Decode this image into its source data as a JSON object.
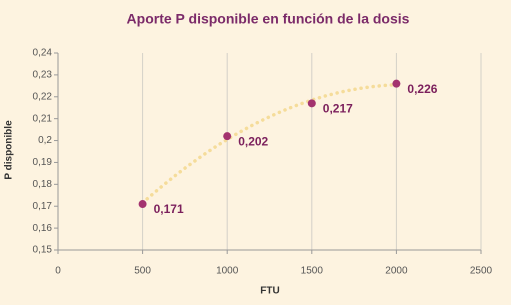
{
  "chart_data": {
    "type": "scatter",
    "title": "Aporte P disponible en función de la dosis",
    "x_label": "FTU",
    "y_label": "P disponible",
    "x": [
      500,
      1000,
      1500,
      2000
    ],
    "values": [
      0.171,
      0.202,
      0.217,
      0.226
    ],
    "value_labels": [
      "0,171",
      "0,202",
      "0,217",
      "0,226"
    ],
    "color": "#a3336f",
    "trend_color": "#f5dc9a",
    "xlim": [
      0,
      2500
    ],
    "xticks": [
      0,
      500,
      1000,
      1500,
      2000,
      2500
    ],
    "ylim": [
      0.15,
      0.24
    ],
    "yticks": [
      {
        "value": 0.15,
        "label": "0,15"
      },
      {
        "value": 0.16,
        "label": "0,16"
      },
      {
        "value": 0.17,
        "label": "0,17"
      },
      {
        "value": 0.18,
        "label": "0,18"
      },
      {
        "value": 0.19,
        "label": "0,19"
      },
      {
        "value": 0.2,
        "label": "0,2"
      },
      {
        "value": 0.21,
        "label": "0,21"
      },
      {
        "value": 0.22,
        "label": "0,22"
      },
      {
        "value": 0.23,
        "label": "0,23"
      },
      {
        "value": 0.24,
        "label": "0,24"
      }
    ],
    "grid": true
  }
}
